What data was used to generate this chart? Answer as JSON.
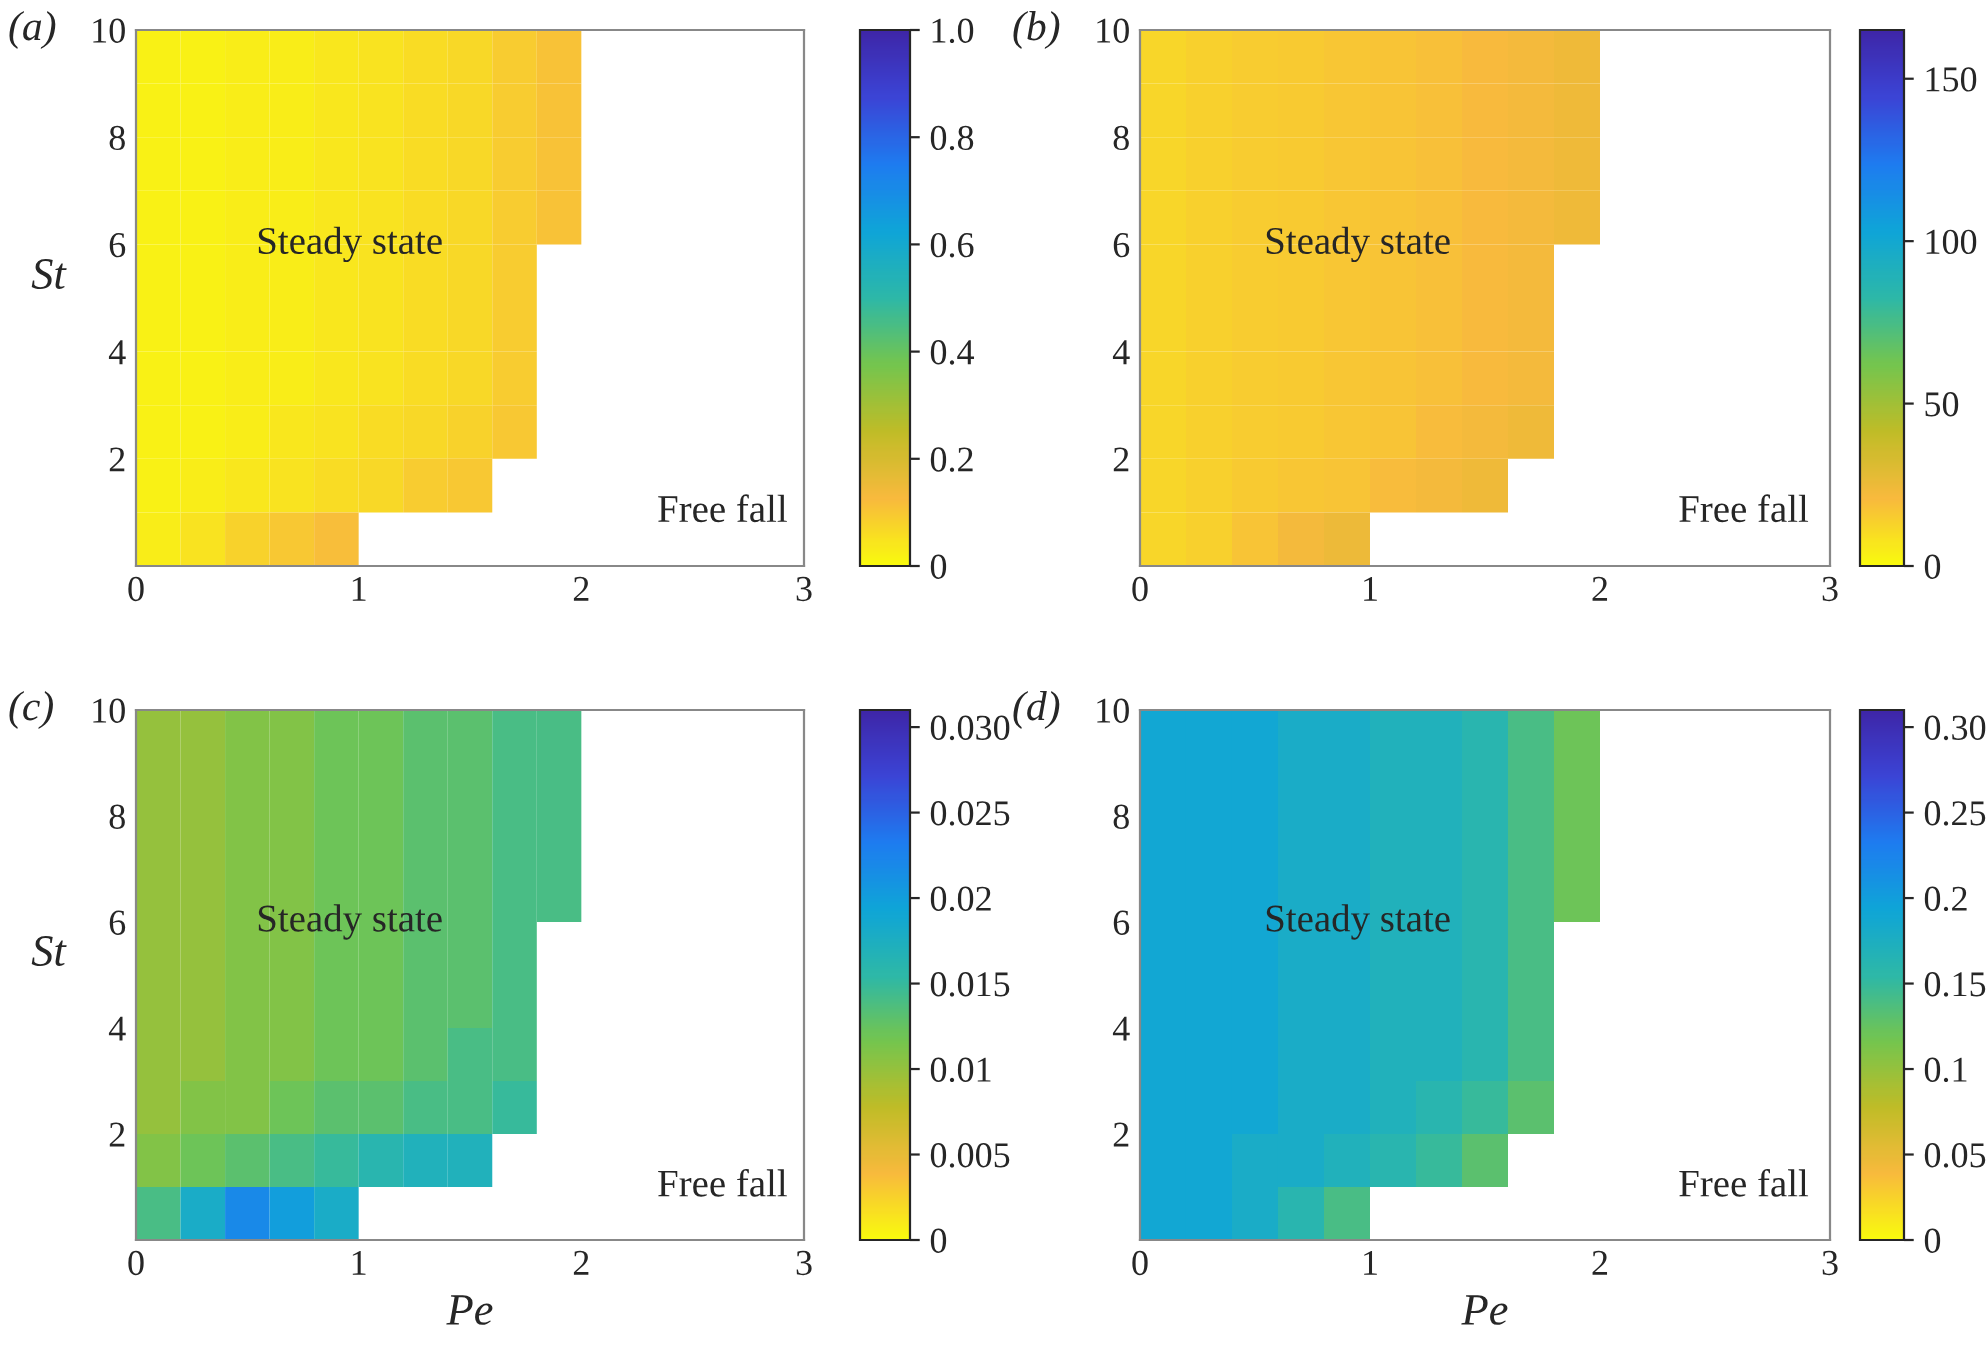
{
  "chart_data": [
    {
      "type": "heatmap",
      "title": "(a)",
      "ylabel": "St",
      "x": [
        0.1,
        0.3,
        0.5,
        0.7,
        0.9,
        1.1,
        1.3,
        1.5,
        1.7,
        1.9
      ],
      "y": [
        9.5,
        8.5,
        7.5,
        6.5,
        5.5,
        4.5,
        3.5,
        2.5,
        1.5,
        0.5
      ],
      "cells": [
        [
          0.02,
          0.02,
          0.03,
          0.03,
          0.04,
          0.05,
          0.06,
          0.07,
          0.09,
          0.11
        ],
        [
          0.02,
          0.02,
          0.03,
          0.03,
          0.04,
          0.05,
          0.06,
          0.07,
          0.09,
          0.11
        ],
        [
          0.02,
          0.02,
          0.03,
          0.03,
          0.04,
          0.05,
          0.06,
          0.07,
          0.09,
          0.11
        ],
        [
          0.02,
          0.02,
          0.03,
          0.03,
          0.04,
          0.05,
          0.06,
          0.07,
          0.09,
          0.11
        ],
        [
          0.02,
          0.02,
          0.03,
          0.03,
          0.04,
          0.05,
          0.06,
          0.07,
          0.09,
          null
        ],
        [
          0.02,
          0.02,
          0.03,
          0.03,
          0.04,
          0.05,
          0.06,
          0.07,
          0.09,
          null
        ],
        [
          0.02,
          0.02,
          0.03,
          0.03,
          0.04,
          0.05,
          0.06,
          0.07,
          0.09,
          null
        ],
        [
          0.02,
          0.02,
          0.03,
          0.04,
          0.05,
          0.06,
          0.07,
          0.08,
          0.1,
          null
        ],
        [
          0.02,
          0.03,
          0.04,
          0.05,
          0.06,
          0.07,
          0.09,
          0.1,
          null,
          null
        ],
        [
          0.03,
          0.05,
          0.08,
          0.1,
          0.12,
          null,
          null,
          null,
          null,
          null
        ]
      ],
      "clim": [
        0,
        1
      ],
      "cticks": [
        0,
        0.2,
        0.4,
        0.6,
        0.8,
        {
          "value": 1,
          "label": "1.0"
        }
      ],
      "xlim": [
        0,
        3
      ],
      "ylim": [
        0,
        10
      ],
      "xticks": [
        0,
        1,
        2,
        3
      ],
      "yticks": [
        2,
        4,
        6,
        8,
        10
      ],
      "annotations": [
        "Steady state",
        "Free fall"
      ]
    },
    {
      "type": "heatmap",
      "title": "(b)",
      "x": [
        0.1,
        0.3,
        0.5,
        0.7,
        0.9,
        1.1,
        1.3,
        1.5,
        1.7,
        1.9
      ],
      "y": [
        9.5,
        8.5,
        7.5,
        6.5,
        5.5,
        4.5,
        3.5,
        2.5,
        1.5,
        0.5
      ],
      "cells": [
        [
          12,
          14,
          15,
          16,
          17,
          18,
          19,
          21,
          22,
          24
        ],
        [
          12,
          14,
          15,
          16,
          17,
          18,
          19,
          21,
          22,
          24
        ],
        [
          12,
          14,
          15,
          16,
          17,
          18,
          19,
          21,
          22,
          24
        ],
        [
          12,
          14,
          15,
          16,
          17,
          18,
          19,
          21,
          22,
          24
        ],
        [
          12,
          14,
          15,
          16,
          17,
          18,
          19,
          21,
          22,
          null
        ],
        [
          12,
          14,
          15,
          16,
          17,
          18,
          19,
          21,
          22,
          null
        ],
        [
          12,
          14,
          15,
          16,
          17,
          18,
          19,
          21,
          22,
          null
        ],
        [
          12,
          14,
          15,
          16,
          17,
          18,
          20,
          22,
          24,
          null
        ],
        [
          12,
          14,
          16,
          17,
          18,
          20,
          22,
          24,
          null,
          null
        ],
        [
          12,
          14,
          18,
          22,
          25,
          null,
          null,
          null,
          null,
          null
        ]
      ],
      "clim": [
        0,
        165
      ],
      "cticks": [
        0,
        50,
        100,
        150
      ],
      "xlim": [
        0,
        3
      ],
      "ylim": [
        0,
        10
      ],
      "xticks": [
        0,
        1,
        2,
        3
      ],
      "yticks": [
        2,
        4,
        6,
        8,
        10
      ],
      "annotations": [
        "Steady state",
        "Free fall"
      ]
    },
    {
      "type": "heatmap",
      "title": "(c)",
      "xlabel": "Pe",
      "ylabel": "St",
      "x": [
        0.1,
        0.3,
        0.5,
        0.7,
        0.9,
        1.1,
        1.3,
        1.5,
        1.7,
        1.9
      ],
      "y": [
        9.5,
        8.5,
        7.5,
        6.5,
        5.5,
        4.5,
        3.5,
        2.5,
        1.5,
        0.5
      ],
      "cells": [
        [
          0.01,
          0.01,
          0.011,
          0.011,
          0.012,
          0.012,
          0.013,
          0.013,
          0.014,
          0.014
        ],
        [
          0.01,
          0.01,
          0.011,
          0.011,
          0.012,
          0.012,
          0.013,
          0.013,
          0.014,
          0.014
        ],
        [
          0.01,
          0.01,
          0.011,
          0.011,
          0.012,
          0.012,
          0.013,
          0.013,
          0.014,
          0.014
        ],
        [
          0.01,
          0.01,
          0.011,
          0.011,
          0.012,
          0.012,
          0.013,
          0.013,
          0.014,
          0.014
        ],
        [
          0.01,
          0.01,
          0.011,
          0.011,
          0.012,
          0.012,
          0.013,
          0.013,
          0.014,
          null
        ],
        [
          0.01,
          0.01,
          0.011,
          0.011,
          0.012,
          0.012,
          0.013,
          0.013,
          0.014,
          null
        ],
        [
          0.01,
          0.01,
          0.011,
          0.011,
          0.012,
          0.012,
          0.013,
          0.014,
          0.014,
          null
        ],
        [
          0.01,
          0.011,
          0.011,
          0.012,
          0.013,
          0.013,
          0.014,
          0.014,
          0.015,
          null
        ],
        [
          0.011,
          0.012,
          0.013,
          0.014,
          0.015,
          0.016,
          0.017,
          0.017,
          null,
          null
        ],
        [
          0.014,
          0.018,
          0.022,
          0.02,
          0.018,
          null,
          null,
          null,
          null,
          null
        ]
      ],
      "clim": [
        0,
        0.031
      ],
      "cticks": [
        0,
        0.005,
        0.01,
        0.015,
        0.02,
        0.025,
        {
          "value": 0.03,
          "label": "0.030"
        }
      ],
      "xlim": [
        0,
        3
      ],
      "ylim": [
        0,
        10
      ],
      "xticks": [
        0,
        1,
        2,
        3
      ],
      "yticks": [
        2,
        4,
        6,
        8,
        10
      ],
      "annotations": [
        "Steady state",
        "Free fall"
      ]
    },
    {
      "type": "heatmap",
      "title": "(d)",
      "xlabel": "Pe",
      "x": [
        0.1,
        0.3,
        0.5,
        0.7,
        0.9,
        1.1,
        1.3,
        1.5,
        1.7,
        1.9
      ],
      "y": [
        9.5,
        8.5,
        7.5,
        6.5,
        5.5,
        4.5,
        3.5,
        2.5,
        1.5,
        0.5
      ],
      "cells": [
        [
          0.19,
          0.19,
          0.19,
          0.18,
          0.18,
          0.17,
          0.17,
          0.16,
          0.14,
          0.12
        ],
        [
          0.19,
          0.19,
          0.19,
          0.18,
          0.18,
          0.17,
          0.17,
          0.16,
          0.14,
          0.12
        ],
        [
          0.19,
          0.19,
          0.19,
          0.18,
          0.18,
          0.17,
          0.17,
          0.16,
          0.14,
          0.12
        ],
        [
          0.19,
          0.19,
          0.19,
          0.18,
          0.18,
          0.17,
          0.17,
          0.16,
          0.14,
          0.12
        ],
        [
          0.19,
          0.19,
          0.19,
          0.18,
          0.18,
          0.17,
          0.17,
          0.16,
          0.14,
          null
        ],
        [
          0.19,
          0.19,
          0.19,
          0.18,
          0.18,
          0.17,
          0.17,
          0.16,
          0.14,
          null
        ],
        [
          0.19,
          0.19,
          0.19,
          0.18,
          0.18,
          0.17,
          0.17,
          0.16,
          0.14,
          null
        ],
        [
          0.19,
          0.19,
          0.19,
          0.18,
          0.18,
          0.17,
          0.16,
          0.15,
          0.13,
          null
        ],
        [
          0.19,
          0.19,
          0.18,
          0.18,
          0.17,
          0.16,
          0.15,
          0.13,
          null,
          null
        ],
        [
          0.19,
          0.19,
          0.18,
          0.16,
          0.14,
          null,
          null,
          null,
          null,
          null
        ]
      ],
      "clim": [
        0,
        0.31
      ],
      "cticks": [
        0,
        0.05,
        0.1,
        0.15,
        0.2,
        0.25,
        {
          "value": 0.3,
          "label": "0.30"
        }
      ],
      "xlim": [
        0,
        3
      ],
      "ylim": [
        0,
        10
      ],
      "xticks": [
        0,
        1,
        2,
        3
      ],
      "yticks": [
        2,
        4,
        6,
        8,
        10
      ],
      "annotations": [
        "Steady state",
        "Free fall"
      ]
    }
  ]
}
